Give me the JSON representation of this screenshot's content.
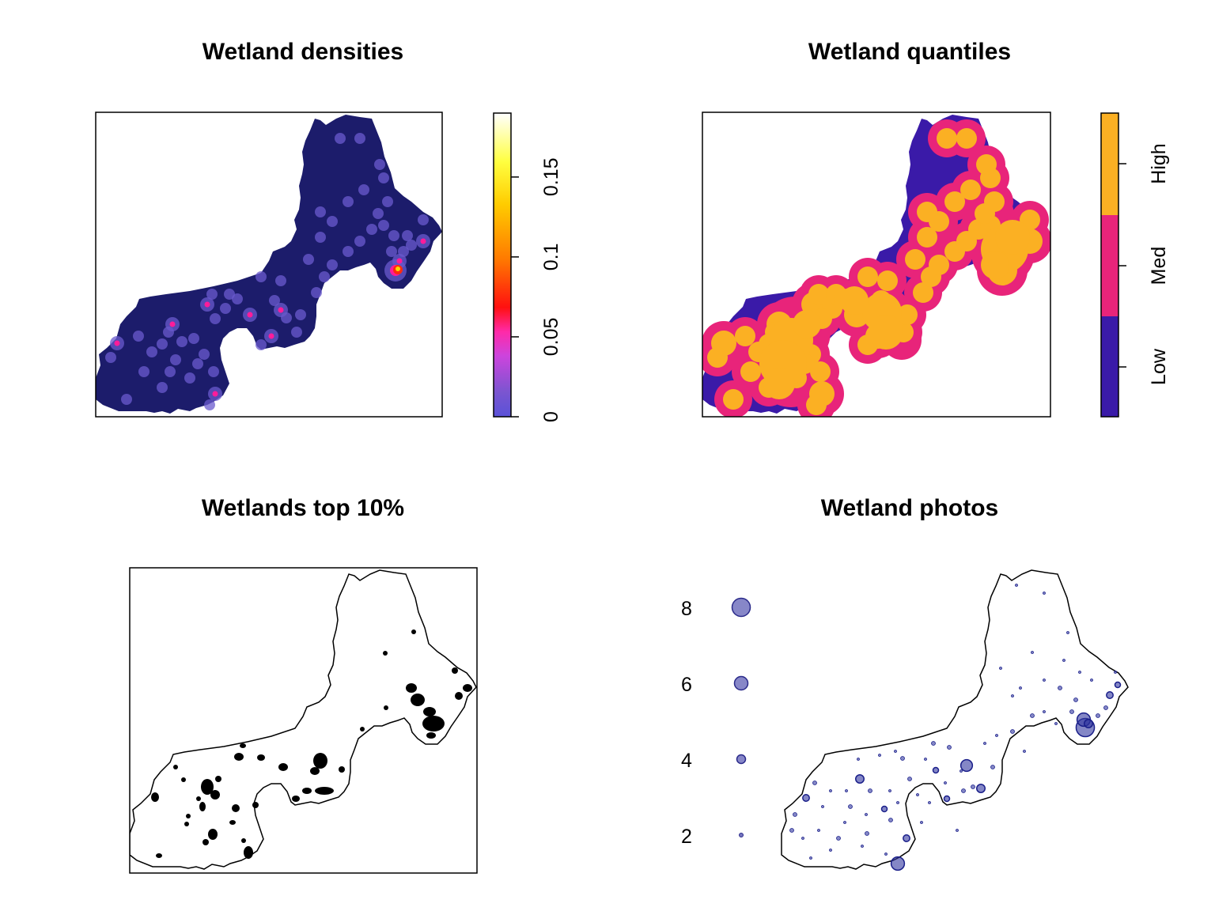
{
  "panels": {
    "densities": {
      "title": "Wetland densities",
      "legend_ticks": [
        "0",
        "0.05",
        "0.1",
        "0.15"
      ],
      "legend_range": [
        0,
        0.19
      ]
    },
    "quantiles": {
      "title": "Wetland quantiles",
      "legend_labels": [
        "Low",
        "Med",
        "High"
      ]
    },
    "top10": {
      "title": "Wetlands top 10%"
    },
    "photos": {
      "title": "Wetland photos",
      "size_legend": [
        "8",
        "6",
        "4",
        "2"
      ]
    }
  },
  "colors": {
    "density_bg": "#1c1c6b",
    "low": "#3a1aa8",
    "med": "#e8247a",
    "high": "#fbb023",
    "photo_point": "#1a1f8a"
  },
  "chart_data": [
    {
      "type": "heatmap",
      "title": "Wetland densities",
      "scale": {
        "min": 0,
        "max": 0.19,
        "ticks": [
          0,
          0.05,
          0.1,
          0.15
        ]
      }
    },
    {
      "type": "heatmap",
      "title": "Wetland quantiles",
      "categories": [
        "Low",
        "Med",
        "High"
      ]
    },
    {
      "type": "heatmap",
      "title": "Wetlands top 10%"
    },
    {
      "type": "scatter",
      "title": "Wetland photos",
      "size_legend_values": [
        8,
        6,
        4,
        2
      ]
    }
  ]
}
